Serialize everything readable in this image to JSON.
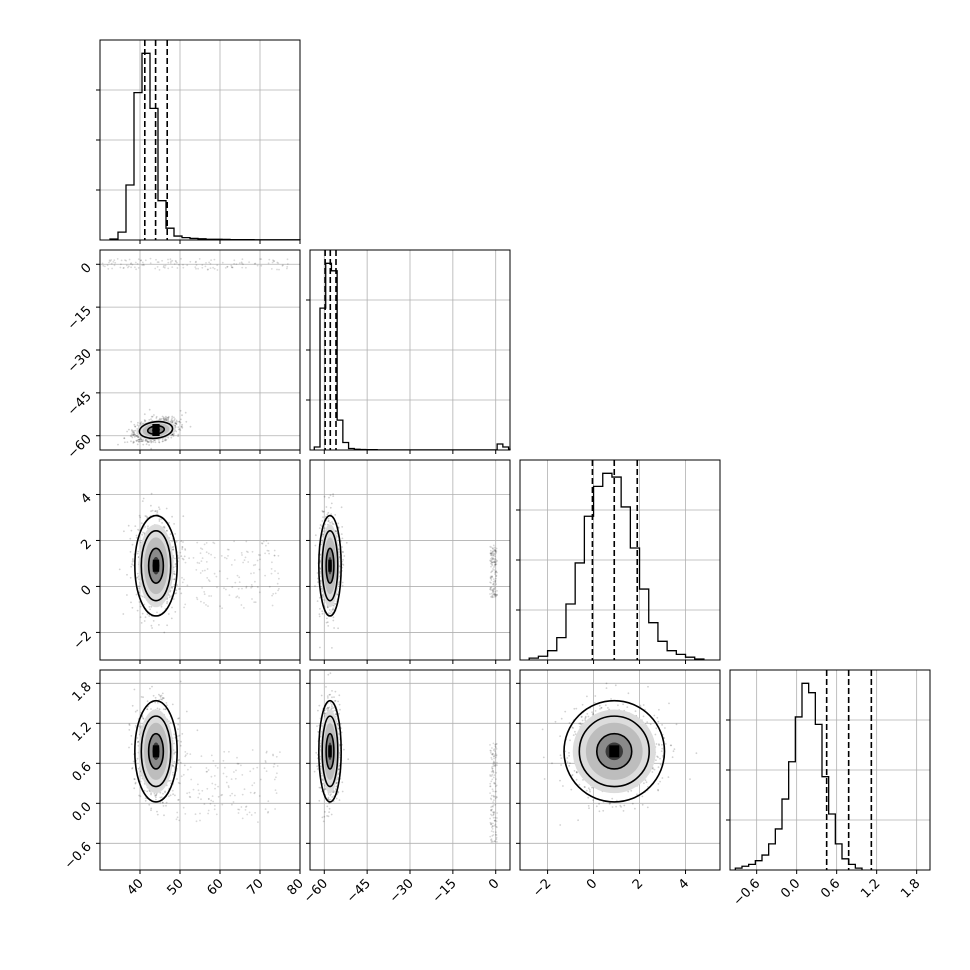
{
  "chart_data": {
    "type": "corner",
    "grid": true,
    "parameters": [
      {
        "index": 0,
        "range": [
          30,
          80
        ],
        "ticks": [
          40,
          50,
          60,
          70,
          80
        ],
        "tick_labels": [
          "40",
          "50",
          "60",
          "70",
          "80"
        ],
        "quantiles": [
          41.2,
          43.9,
          46.8
        ],
        "histogram": {
          "start": 32.5,
          "width": 2.0,
          "counts": [
            0.005,
            0.04,
            0.28,
            0.75,
            0.95,
            0.67,
            0.2,
            0.06,
            0.02,
            0.012,
            0.008,
            0.006,
            0.004,
            0.004,
            0.003,
            0.002,
            0.002,
            0.002,
            0.001,
            0.001,
            0.001,
            0.001,
            0.001,
            0.001
          ]
        }
      },
      {
        "index": 1,
        "range": [
          -65,
          5
        ],
        "ticks": [
          -60,
          -45,
          -30,
          -15,
          0
        ],
        "tick_labels": [
          "−60",
          "−45",
          "−30",
          "−15",
          "0"
        ],
        "quantiles": [
          -59.7,
          -57.9,
          -55.9
        ],
        "histogram": {
          "start": -63.5,
          "width": 2.0,
          "counts": [
            0.02,
            0.95,
            1.25,
            1.2,
            0.2,
            0.05,
            0.01,
            0.005,
            0.003,
            0.002,
            0.002,
            0.001,
            0.001,
            0.001,
            0.001,
            0.001,
            0.001,
            0.001,
            0.001,
            0.001,
            0.001,
            0.001,
            0.001,
            0.001,
            0.001,
            0.001,
            0.001,
            0.001,
            0.001,
            0.001,
            0.001,
            0.001,
            0.04,
            0.02,
            0.005
          ]
        }
      },
      {
        "index": 2,
        "range": [
          -3.2,
          5.5
        ],
        "ticks": [
          -2,
          0,
          2,
          4
        ],
        "tick_labels": [
          "−2",
          "0",
          "2",
          "4"
        ],
        "quantiles": [
          -0.05,
          0.9,
          1.9
        ],
        "histogram": {
          "start": -2.8,
          "width": 0.4,
          "counts": [
            0.01,
            0.02,
            0.05,
            0.12,
            0.3,
            0.52,
            0.77,
            0.93,
            1.0,
            0.98,
            0.82,
            0.6,
            0.38,
            0.2,
            0.1,
            0.05,
            0.03,
            0.015,
            0.005
          ]
        }
      },
      {
        "index": 3,
        "range": [
          -1.0,
          2.0
        ],
        "ticks": [
          -0.6,
          0.0,
          0.6,
          1.2,
          1.8
        ],
        "tick_labels": [
          "−0.6",
          "0.0",
          "0.6",
          "1.2",
          "1.8"
        ],
        "quantiles": [
          0.45,
          0.78,
          1.12
        ],
        "histogram": {
          "start": -0.92,
          "width": 0.1,
          "counts": [
            0.01,
            0.02,
            0.03,
            0.05,
            0.08,
            0.14,
            0.22,
            0.38,
            0.58,
            0.82,
            1.0,
            0.95,
            0.78,
            0.5,
            0.3,
            0.14,
            0.06,
            0.03,
            0.01
          ]
        }
      }
    ],
    "pairs": [
      {
        "row": 1,
        "col": 0,
        "center": [
          44,
          -58
        ],
        "spread": [
          2.6,
          1.8
        ],
        "tilt": -0.55,
        "levels": [
          0.8,
          1.6
        ],
        "scatter_fill": [
          [
            30,
            78,
            -2,
            2
          ]
        ]
      },
      {
        "row": 2,
        "col": 0,
        "center": [
          44,
          0.9
        ],
        "spread": [
          2.3,
          0.95
        ],
        "tilt": 0,
        "levels": [
          0.8,
          1.6,
          2.3
        ],
        "scatter_fill": [
          [
            50,
            75,
            -1,
            2
          ]
        ]
      },
      {
        "row": 2,
        "col": 1,
        "center": [
          -58,
          0.9
        ],
        "spread": [
          1.7,
          0.95
        ],
        "tilt": 0,
        "levels": [
          0.8,
          1.6,
          2.3
        ],
        "scatter_fill": [
          [
            -2,
            0.5,
            -0.5,
            1.8
          ]
        ]
      },
      {
        "row": 3,
        "col": 0,
        "center": [
          44,
          0.78
        ],
        "spread": [
          2.3,
          0.33
        ],
        "tilt": 0,
        "levels": [
          0.8,
          1.6,
          2.3
        ],
        "scatter_fill": [
          [
            48,
            75,
            -0.3,
            0.8
          ]
        ]
      },
      {
        "row": 3,
        "col": 1,
        "center": [
          -58,
          0.78
        ],
        "spread": [
          1.7,
          0.33
        ],
        "tilt": 0,
        "levels": [
          0.8,
          1.6,
          2.3
        ],
        "scatter_fill": [
          [
            -2,
            0.5,
            -0.6,
            0.9
          ]
        ]
      },
      {
        "row": 3,
        "col": 2,
        "center": [
          0.9,
          0.78
        ],
        "spread": [
          0.95,
          0.33
        ],
        "tilt": 0,
        "levels": [
          0.8,
          1.6,
          2.3
        ],
        "scatter_fill": []
      }
    ]
  }
}
